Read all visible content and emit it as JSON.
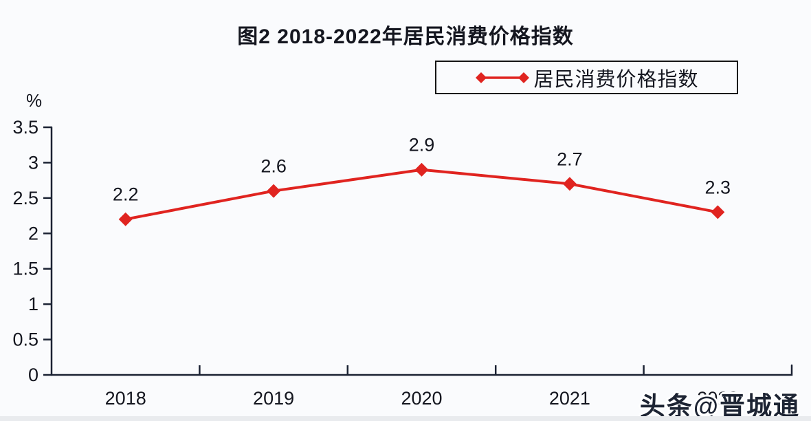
{
  "page": {
    "background": "#fafbfd",
    "bottom_strip_color": "#e9ebee",
    "text_color": "#14161f"
  },
  "chart_data": {
    "type": "line",
    "title": "图2 2018-2022年居民消费价格指数",
    "categories": [
      "2018",
      "2019",
      "2020",
      "2021",
      "2022"
    ],
    "series": [
      {
        "name": "居民消费价格指数",
        "values": [
          2.2,
          2.6,
          2.9,
          2.7,
          2.3
        ],
        "color": "#e02420",
        "marker": "diamond"
      }
    ],
    "data_labels": [
      "2.2",
      "2.6",
      "2.9",
      "2.7",
      "2.3"
    ],
    "xlabel": "",
    "ylabel": "%",
    "ylim": [
      0,
      3.5
    ],
    "ytick_step": 0.5,
    "yticks": [
      "0",
      "0.5",
      "1",
      "1.5",
      "2",
      "2.5",
      "3",
      "3.5"
    ],
    "grid": false,
    "axis_color": "#1b2233",
    "legend": {
      "label": "居民消费价格指数",
      "position": "top-right",
      "border_color": "#141414"
    }
  },
  "watermark": {
    "text": "头条@晋城通",
    "color": "#1d2433"
  }
}
